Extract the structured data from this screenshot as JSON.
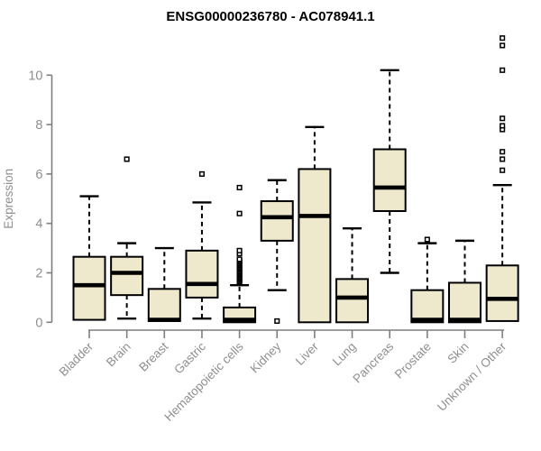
{
  "title": "ENSG00000236780 - AC078941.1",
  "colors": {
    "box_fill": "#EEE8CD",
    "box_stroke": "#000000",
    "median": "#000000",
    "whisker": "#000000",
    "outlier_stroke": "#000000",
    "outlier_fill": "#ffffff",
    "axis": "#7f7f7f",
    "tick_label": "#8f8f8f",
    "title_color": "#000000",
    "background": "#ffffff"
  },
  "chart_data": {
    "type": "boxplot",
    "title": "ENSG00000236780 - AC078941.1",
    "xlabel": "",
    "ylabel": "Expression",
    "ylim": [
      0,
      11.6
    ],
    "yticks": [
      0,
      2,
      4,
      6,
      8,
      10
    ],
    "grid": false,
    "legend": false,
    "categories": [
      "Bladder",
      "Brain",
      "Breast",
      "Gastric",
      "Hematopoietic cells",
      "Kidney",
      "Liver",
      "Lung",
      "Pancreas",
      "Prostate",
      "Skin",
      "Unknown / Other"
    ],
    "boxes": [
      {
        "category": "Bladder",
        "whisker_low": 0.1,
        "q1": 0.1,
        "median": 1.5,
        "q3": 2.65,
        "whisker_high": 5.1,
        "outliers": []
      },
      {
        "category": "Brain",
        "whisker_low": 0.15,
        "q1": 1.1,
        "median": 2.0,
        "q3": 2.65,
        "whisker_high": 3.2,
        "outliers": [
          6.6
        ]
      },
      {
        "category": "Breast",
        "whisker_low": 0.05,
        "q1": 0.05,
        "median": 0.1,
        "q3": 1.35,
        "whisker_high": 3.0,
        "outliers": []
      },
      {
        "category": "Gastric",
        "whisker_low": 0.15,
        "q1": 1.0,
        "median": 1.55,
        "q3": 2.9,
        "whisker_high": 4.85,
        "outliers": [
          6.0
        ]
      },
      {
        "category": "Hematopoietic cells",
        "whisker_low": 0.0,
        "q1": 0.0,
        "median": 0.1,
        "q3": 0.6,
        "whisker_high": 1.5,
        "outliers": [
          1.6,
          1.65,
          1.7,
          1.75,
          1.8,
          1.85,
          1.9,
          1.95,
          2.0,
          2.05,
          2.1,
          2.15,
          2.2,
          2.25,
          2.3,
          2.35,
          2.4,
          2.45,
          2.5,
          2.55,
          2.78,
          2.9,
          4.4,
          5.45
        ]
      },
      {
        "category": "Kidney",
        "whisker_low": 1.3,
        "q1": 3.3,
        "median": 4.25,
        "q3": 4.9,
        "whisker_high": 5.75,
        "outliers": [
          0.05
        ]
      },
      {
        "category": "Liver",
        "whisker_low": 0.0,
        "q1": 0.0,
        "median": 4.3,
        "q3": 6.2,
        "whisker_high": 7.9,
        "outliers": []
      },
      {
        "category": "Lung",
        "whisker_low": 0.0,
        "q1": 0.0,
        "median": 1.0,
        "q3": 1.75,
        "whisker_high": 3.8,
        "outliers": []
      },
      {
        "category": "Pancreas",
        "whisker_low": 2.0,
        "q1": 4.5,
        "median": 5.45,
        "q3": 7.0,
        "whisker_high": 10.2,
        "outliers": []
      },
      {
        "category": "Prostate",
        "whisker_low": 0.0,
        "q1": 0.0,
        "median": 0.1,
        "q3": 1.3,
        "whisker_high": 3.2,
        "outliers": [
          3.35
        ]
      },
      {
        "category": "Skin",
        "whisker_low": 0.0,
        "q1": 0.0,
        "median": 0.1,
        "q3": 1.6,
        "whisker_high": 3.3,
        "outliers": []
      },
      {
        "category": "Unknown / Other",
        "whisker_low": 0.05,
        "q1": 0.05,
        "median": 0.95,
        "q3": 2.3,
        "whisker_high": 5.55,
        "outliers": [
          6.15,
          6.6,
          6.9,
          7.8,
          7.95,
          8.25,
          10.2,
          11.2,
          11.5
        ]
      }
    ]
  }
}
